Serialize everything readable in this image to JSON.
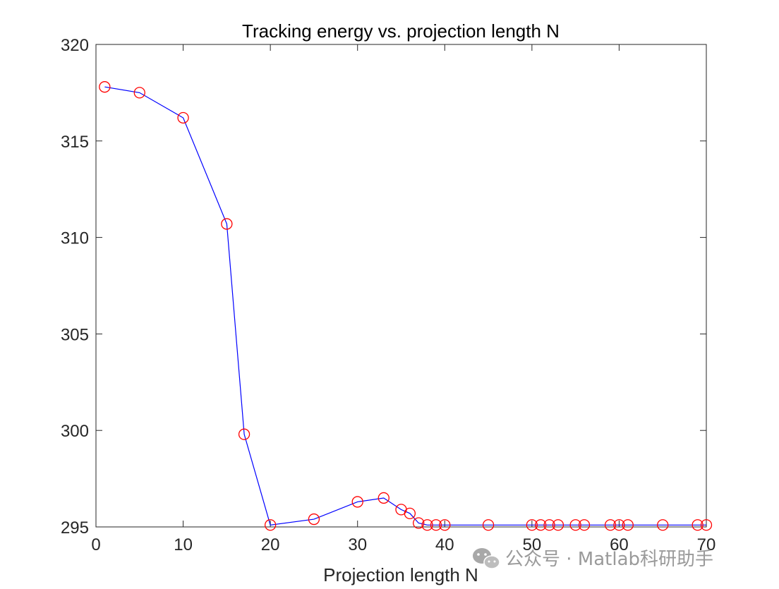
{
  "chart_data": {
    "type": "line",
    "title": "Tracking energy vs. projection length N",
    "xlabel": "Projection length N",
    "ylabel": "",
    "xlim": [
      0,
      70
    ],
    "ylim": [
      295,
      320
    ],
    "xticks": [
      0,
      10,
      20,
      30,
      40,
      50,
      60,
      70
    ],
    "yticks": [
      295,
      300,
      305,
      310,
      315,
      320
    ],
    "grid": false,
    "series": [
      {
        "name": "energy",
        "line_color": "#0000ff",
        "marker": "circle",
        "marker_color": "#ff0000",
        "x": [
          1,
          5,
          10,
          15,
          17,
          20,
          25,
          30,
          33,
          35,
          36,
          37,
          38,
          39,
          40,
          45,
          50,
          51,
          52,
          53,
          55,
          56,
          59,
          60,
          61,
          65,
          69,
          70
        ],
        "y": [
          317.8,
          317.5,
          316.2,
          310.7,
          299.8,
          295.1,
          295.4,
          296.3,
          296.5,
          295.9,
          295.7,
          295.2,
          295.1,
          295.1,
          295.1,
          295.1,
          295.1,
          295.1,
          295.1,
          295.1,
          295.1,
          295.1,
          295.1,
          295.1,
          295.1,
          295.1,
          295.1,
          295.1
        ]
      }
    ]
  },
  "watermark": {
    "text": "公众号 · Matlab科研助手",
    "icon": "wechat-icon",
    "color": "#9a9a9a"
  }
}
